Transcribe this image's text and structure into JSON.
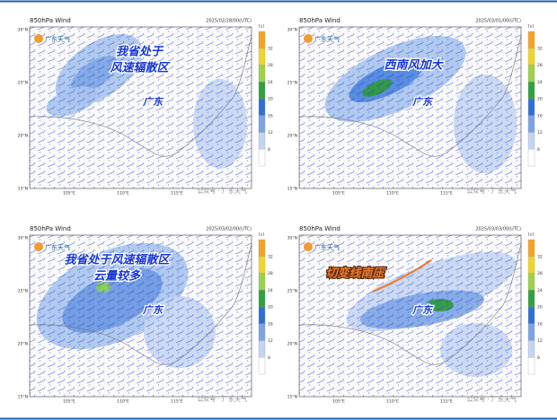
{
  "panels": [
    {
      "title": "850hPa Wind",
      "time": "2025/02/28/00(UTC)",
      "logo": "广东天气",
      "annotation": [
        "我省处于",
        "风速辐散区"
      ],
      "region_label": "广东",
      "watermark": "公众号 · 广东天气"
    },
    {
      "title": "850hPa Wind",
      "time": "2025/03/01/00(UTC)",
      "logo": "广东天气",
      "annotation": [
        "西南风加大"
      ],
      "region_label": "广东",
      "watermark": "公众号 · 广东天气"
    },
    {
      "title": "850hPa Wind",
      "time": "2025/03/02/00(UTC)",
      "logo": "广东天气",
      "annotation": [
        "我省处于风速辐散区",
        "云量较多"
      ],
      "region_label": "广东",
      "watermark": "公众号 · 广东天气"
    },
    {
      "title": "850hPa Wind",
      "time": "2025/03/03/00(UTC)",
      "logo": "广东天气",
      "annotation": [
        "切变线南压"
      ],
      "region_label": "广东",
      "watermark": "公众号 · 广东天气"
    }
  ],
  "lat_labels": [
    "30°N",
    "25°N",
    "20°N",
    "15°N"
  ],
  "lon_labels": [
    "105°E",
    "110°E",
    "115°E"
  ],
  "colorbar": {
    "unit": "[s]",
    "ticks": [
      32,
      28,
      24,
      20,
      16,
      12,
      8
    ]
  }
}
